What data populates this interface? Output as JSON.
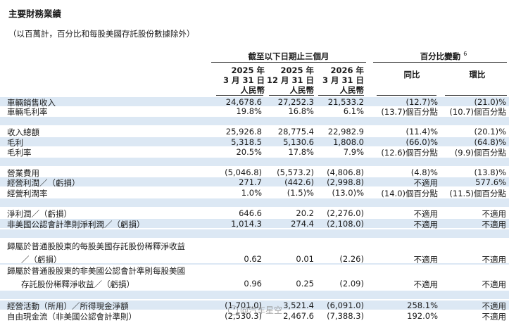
{
  "title": "主要財務業績",
  "subtitle": "（以百萬計，百分比和每股美國存託股份數據除外）",
  "header": {
    "period_group": "截至以下日期止三個月",
    "change_group": "百分比變動",
    "change_footnote": "6",
    "cols": [
      {
        "line1": "2025 年",
        "line2": "3 月 31 日",
        "line3": "人民幣"
      },
      {
        "line1": "2025 年",
        "line2": "12 月 31 日",
        "line3": "人民幣"
      },
      {
        "line1": "2026 年",
        "line2": "3 月 31 日",
        "line3": "人民幣"
      }
    ],
    "yoy": "同比",
    "qoq": "環比"
  },
  "rows": [
    {
      "label": "車輛銷售收入",
      "v": [
        "24,678.6",
        "27,252.3",
        "21,533.2",
        "(12.7)%",
        "(21.0)%"
      ]
    },
    {
      "label": "車輛毛利率",
      "v": [
        "19.8%",
        "16.8%",
        "6.1%",
        "(13.7)個百分點",
        "(10.7)個百分點"
      ]
    },
    {
      "label": "收入總額",
      "v": [
        "25,926.8",
        "28,775.4",
        "22,982.9",
        "(11.4)%",
        "(20.1)%"
      ]
    },
    {
      "label": "毛利",
      "v": [
        "5,318.5",
        "5,130.6",
        "1,808.0",
        "(66.0)%",
        "(64.8)%"
      ]
    },
    {
      "label": "毛利率",
      "v": [
        "20.5%",
        "17.8%",
        "7.9%",
        "(12.6)個百分點",
        "(9.9)個百分點"
      ]
    },
    {
      "label": "營業費用",
      "v": [
        "(5,046.8)",
        "(5,573.2)",
        "(4,806.8)",
        "(4.8)%",
        "(13.8)%"
      ]
    },
    {
      "label": "經營利潤／（虧損）",
      "v": [
        "271.7",
        "(442.6)",
        "(2,998.8)",
        "不適用",
        "577.6%"
      ]
    },
    {
      "label": "經營利潤率",
      "v": [
        "1.0%",
        "(1.5)%",
        "(13.0)%",
        "(14.0)個百分點",
        "(11.5)個百分點"
      ]
    },
    {
      "label": "淨利潤／（虧損）",
      "v": [
        "646.6",
        "20.2",
        "(2,276.0)",
        "不適用",
        "不適用"
      ]
    },
    {
      "label": "非美國公認會計準則淨利潤／（虧損）",
      "v": [
        "1,014.3",
        "274.4",
        "(2,108.0)",
        "不適用",
        "不適用"
      ]
    },
    {
      "label": "歸屬於普通股股東的每股美國存託股份稀釋淨收益",
      "v": [
        "",
        "",
        "",
        "",
        ""
      ]
    },
    {
      "label": "／（虧損）",
      "v": [
        "0.62",
        "0.01",
        "(2.26)",
        "不適用",
        "不適用"
      ]
    },
    {
      "label": "歸屬於普通股股東的非美國公認會計準則每股美國",
      "v": [
        "",
        "",
        "",
        "",
        ""
      ]
    },
    {
      "label": "存託股份稀釋淨收益／（虧損）",
      "v": [
        "0.96",
        "0.25",
        "(2.09)",
        "不適用",
        "不適用"
      ]
    },
    {
      "label": "經營活動（所用）／所得現金淨額",
      "v": [
        "(1,701.0)",
        "3,521.4",
        "(6,091.0)",
        "258.1%",
        "不適用"
      ]
    },
    {
      "label": "自由現金流（非美國公認會計準則）",
      "v": [
        "(2,530.3)",
        "2,467.6",
        "(7,388.3)",
        "192.0%",
        "不適用"
      ]
    }
  ],
  "watermark": "@汽车星空"
}
